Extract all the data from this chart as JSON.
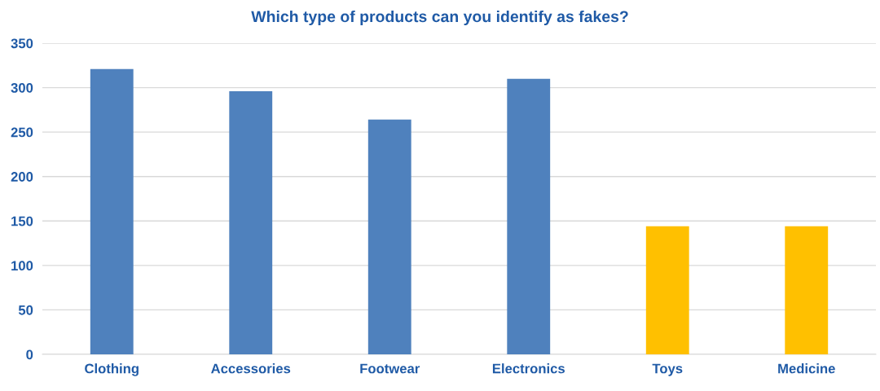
{
  "chart_data": {
    "type": "bar",
    "title": "Which type of products can you identify as fakes?",
    "categories": [
      "Clothing",
      "Accessories",
      "Footwear",
      "Electronics",
      "Toys",
      "Medicine"
    ],
    "values": [
      321,
      296,
      264,
      310,
      144,
      144
    ],
    "colors": [
      "#4f81bd",
      "#4f81bd",
      "#4f81bd",
      "#4f81bd",
      "#ffc000",
      "#ffc000"
    ],
    "ylim": [
      0,
      350
    ],
    "yticks": [
      0,
      50,
      100,
      150,
      200,
      250,
      300,
      350
    ],
    "grid": "y"
  }
}
